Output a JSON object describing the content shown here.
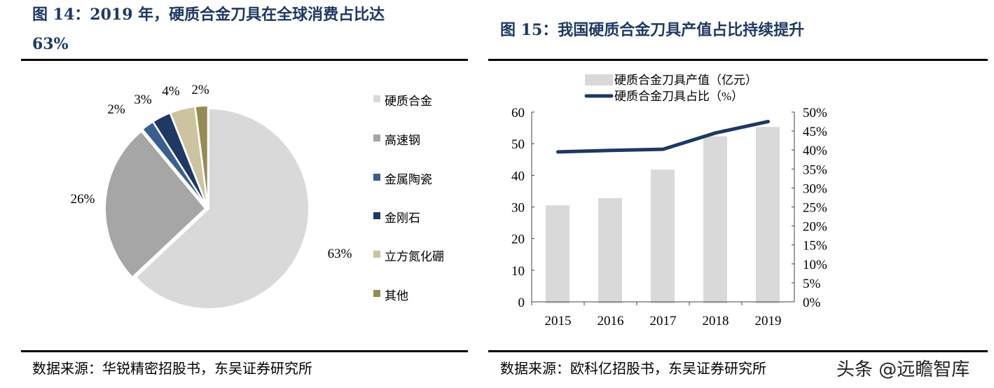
{
  "left": {
    "title_line1": "图 14：2019 年，硬质合金刀具在全球消费占比达",
    "title_line2": "63%",
    "source": "数据来源：华锐精密招股书，东吴证券研究所"
  },
  "right": {
    "title": "图 15：我国硬质合金刀具产值占比持续提升",
    "source": "数据来源：欧科亿招股书，东吴证券研究所"
  },
  "watermark": "头条 @远瞻智库",
  "chart_data": [
    {
      "type": "pie",
      "labels": [
        "硬质合金",
        "高速钢",
        "金属陶瓷",
        "金刚石",
        "立方氮化硼",
        "其他"
      ],
      "values": [
        63,
        26,
        2,
        3,
        4,
        2
      ],
      "data_labels": [
        "63%",
        "26%",
        "2%",
        "3%",
        "4%",
        "2%"
      ],
      "colors": [
        "#d9d9d9",
        "#a6a6a6",
        "#3a5f8f",
        "#1f3864",
        "#cbc49e",
        "#958b55"
      ],
      "legend": "right"
    },
    {
      "type": "bar+line",
      "categories": [
        "2015",
        "2016",
        "2017",
        "2018",
        "2019"
      ],
      "series": [
        {
          "name": "硬质合金刀具产值（亿元）",
          "type": "bar",
          "axis": "left",
          "values": [
            30.5,
            32.8,
            41.8,
            52.3,
            55.3
          ],
          "color": "#d9d9d9"
        },
        {
          "name": "硬质合金刀具占比（%）",
          "type": "line",
          "axis": "right",
          "values": [
            39.5,
            39.9,
            40.2,
            44.5,
            47.5
          ],
          "color": "#1f3864"
        }
      ],
      "ylim": [
        0,
        60
      ],
      "yticks": [
        "0",
        "10",
        "20",
        "30",
        "40",
        "50",
        "60"
      ],
      "y2lim": [
        0,
        50
      ],
      "y2ticks": [
        "0%",
        "5%",
        "10%",
        "15%",
        "20%",
        "25%",
        "30%",
        "35%",
        "40%",
        "45%",
        "50%"
      ],
      "legend": "top",
      "grid": false
    }
  ]
}
